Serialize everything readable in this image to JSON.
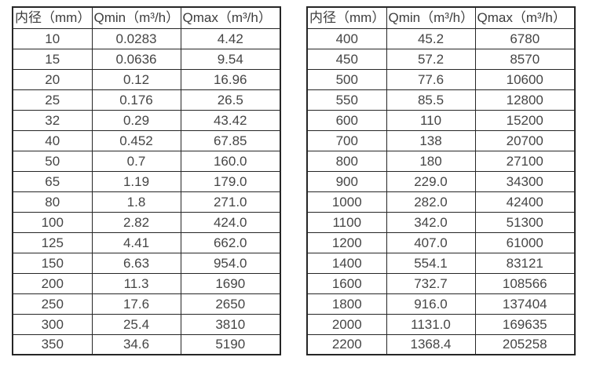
{
  "chart_data": [
    {
      "type": "table",
      "name": "flowmeter-spec-small-diameters",
      "columns": [
        "内径（mm）",
        "Qmin（m³/h）",
        "Qmax（m³/h）"
      ],
      "rows": [
        [
          "10",
          "0.0283",
          "4.42"
        ],
        [
          "15",
          "0.0636",
          "9.54"
        ],
        [
          "20",
          "0.12",
          "16.96"
        ],
        [
          "25",
          "0.176",
          "26.5"
        ],
        [
          "32",
          "0.29",
          "43.42"
        ],
        [
          "40",
          "0.452",
          "67.85"
        ],
        [
          "50",
          "0.7",
          "160.0"
        ],
        [
          "65",
          "1.19",
          "179.0"
        ],
        [
          "80",
          "1.8",
          "271.0"
        ],
        [
          "100",
          "2.82",
          "424.0"
        ],
        [
          "125",
          "4.41",
          "662.0"
        ],
        [
          "150",
          "6.63",
          "954.0"
        ],
        [
          "200",
          "11.3",
          "1690"
        ],
        [
          "250",
          "17.6",
          "2650"
        ],
        [
          "300",
          "25.4",
          "3810"
        ],
        [
          "350",
          "34.6",
          "5190"
        ]
      ]
    },
    {
      "type": "table",
      "name": "flowmeter-spec-large-diameters",
      "columns": [
        "内径（mm）",
        "Qmin（m³/h）",
        "Qmax（m³/h）"
      ],
      "rows": [
        [
          "400",
          "45.2",
          "6780"
        ],
        [
          "450",
          "57.2",
          "8570"
        ],
        [
          "500",
          "77.6",
          "10600"
        ],
        [
          "550",
          "85.5",
          "12800"
        ],
        [
          "600",
          "110",
          "15200"
        ],
        [
          "700",
          "138",
          "20700"
        ],
        [
          "800",
          "180",
          "27100"
        ],
        [
          "900",
          "229.0",
          "34300"
        ],
        [
          "1000",
          "282.0",
          "42400"
        ],
        [
          "1100",
          "342.0",
          "51300"
        ],
        [
          "1200",
          "407.0",
          "61000"
        ],
        [
          "1400",
          "554.1",
          "83121"
        ],
        [
          "1600",
          "732.7",
          "108566"
        ],
        [
          "1800",
          "916.0",
          "137404"
        ],
        [
          "2000",
          "1131.0",
          "169635"
        ],
        [
          "2200",
          "1368.4",
          "205258"
        ]
      ]
    }
  ],
  "colors": {
    "border": "#262626",
    "text": "#454545",
    "background": "#ffffff"
  }
}
